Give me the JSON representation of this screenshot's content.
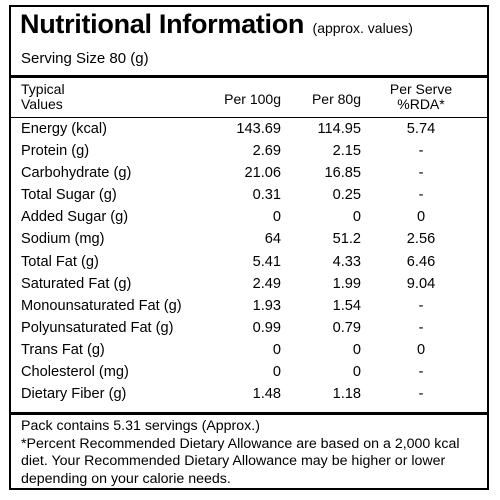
{
  "title": "Nutritional Information",
  "title_note": "(approx. values)",
  "serving": "Serving Size 80 (g)",
  "headers": {
    "col0_line1": "Typical",
    "col0_line2": "Values",
    "col1": "Per 100g",
    "col2": "Per 80g",
    "col3_line1": "Per Serve",
    "col3_line2": "%RDA*"
  },
  "rows": [
    {
      "name": "Energy (kcal)",
      "per100": "143.69",
      "per80": "114.95",
      "rda": "5.74"
    },
    {
      "name": "Protein (g)",
      "per100": "2.69",
      "per80": "2.15",
      "rda": "-"
    },
    {
      "name": "Carbohydrate (g)",
      "per100": "21.06",
      "per80": "16.85",
      "rda": "-"
    },
    {
      "name": "Total Sugar (g)",
      "per100": "0.31",
      "per80": "0.25",
      "rda": "-"
    },
    {
      "name": "Added Sugar (g)",
      "per100": "0",
      "per80": "0",
      "rda": "0"
    },
    {
      "name": "Sodium (mg)",
      "per100": "64",
      "per80": "51.2",
      "rda": "2.56"
    },
    {
      "name": "Total Fat (g)",
      "per100": "5.41",
      "per80": "4.33",
      "rda": "6.46"
    },
    {
      "name": "Saturated Fat (g)",
      "per100": "2.49",
      "per80": "1.99",
      "rda": "9.04"
    },
    {
      "name": "Monounsaturated Fat (g)",
      "per100": "1.93",
      "per80": "1.54",
      "rda": "-"
    },
    {
      "name": "Polyunsaturated Fat (g)",
      "per100": "0.99",
      "per80": "0.79",
      "rda": "-"
    },
    {
      "name": "Trans Fat (g)",
      "per100": "0",
      "per80": "0",
      "rda": "0"
    },
    {
      "name": "Cholesterol (mg)",
      "per100": "0",
      "per80": "0",
      "rda": "-"
    },
    {
      "name": "Dietary Fiber (g)",
      "per100": "1.48",
      "per80": "1.18",
      "rda": "-"
    }
  ],
  "footer": {
    "servings": "Pack contains 5.31 servings (Approx.)",
    "note": "*Percent Recommended Dietary Allowance are based on a 2,000 kcal diet. Your Recommended Dietary Allowance may be higher or lower depending on your calorie needs."
  }
}
